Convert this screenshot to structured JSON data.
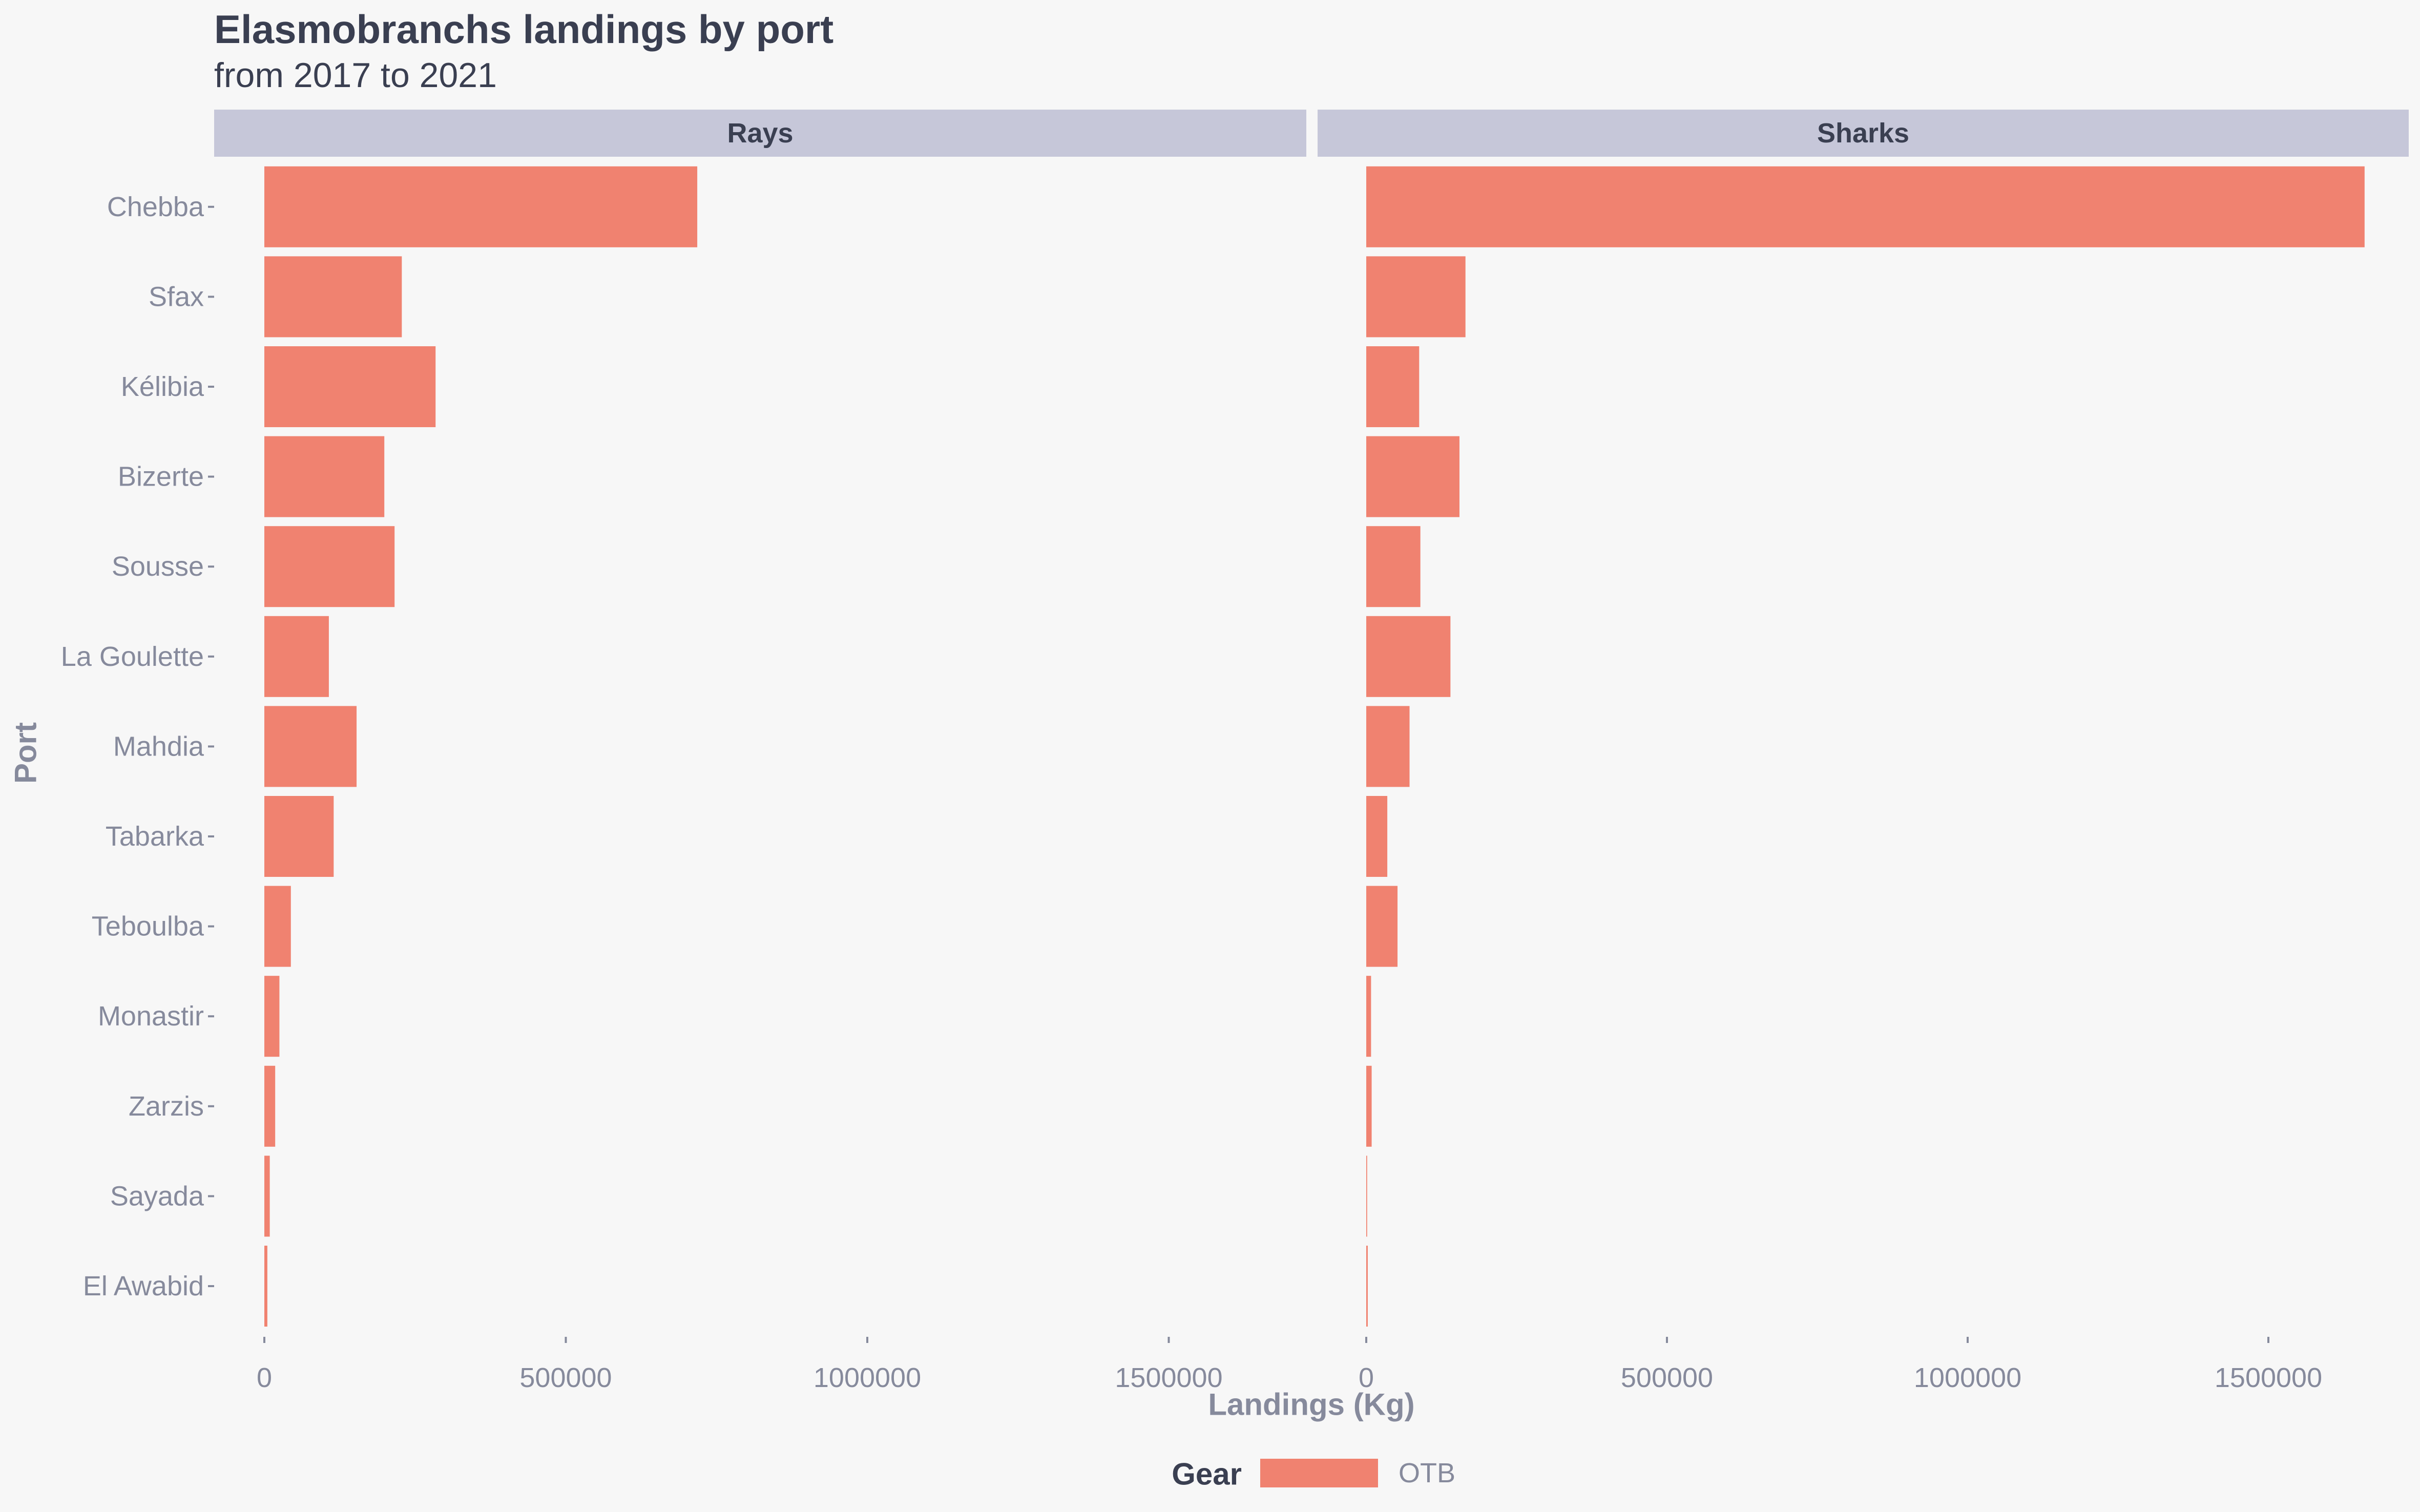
{
  "chart_data": {
    "type": "bar",
    "orientation": "horizontal",
    "title": "Elasmobranchs landings by port",
    "subtitle": "from 2017 to 2021",
    "xlabel": "Landings (Kg)",
    "ylabel": "Port",
    "xlim": [
      0,
      1700000
    ],
    "xticks": [
      0,
      500000,
      1000000,
      1500000
    ],
    "xtick_labels": [
      "0",
      "500000",
      "1000000",
      "1500000"
    ],
    "categories": [
      "Chebba",
      "Sfax",
      "Kélibia",
      "Bizerte",
      "Sousse",
      "La Goulette",
      "Mahdia",
      "Tabarka",
      "Teboulba",
      "Monastir",
      "Zarzis",
      "Sayada",
      "El Awabid"
    ],
    "facets": [
      {
        "name": "Rays",
        "series": [
          {
            "gear": "OTB",
            "values": [
              718000,
              228000,
              284000,
              199000,
              216000,
              107000,
              153000,
              115000,
              44000,
              25000,
              18000,
              9000,
              5000
            ]
          }
        ]
      },
      {
        "name": "Sharks",
        "series": [
          {
            "gear": "OTB",
            "values": [
              1660000,
              165000,
              88000,
              155000,
              90000,
              140000,
              72000,
              35000,
              52000,
              8000,
              9000,
              1500,
              2500
            ]
          }
        ]
      }
    ],
    "grid": false,
    "legend": {
      "title": "Gear",
      "position": "bottom",
      "entries": [
        {
          "label": "OTB",
          "color": "#f08270"
        }
      ]
    },
    "colors": {
      "bar": "#f08270",
      "strip": "#c6c7d9",
      "background": "#f7f7f7",
      "text_dark": "#3a3f51",
      "text_muted": "#868a9c"
    }
  }
}
